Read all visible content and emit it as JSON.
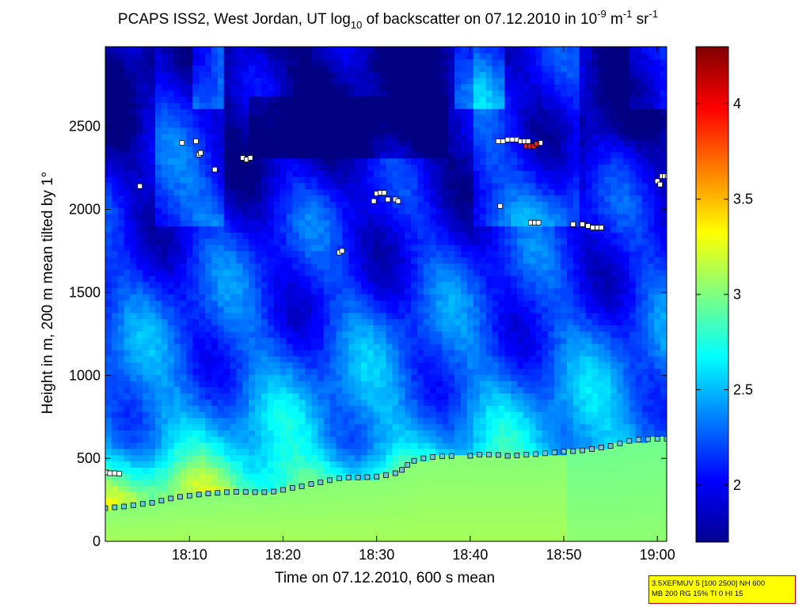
{
  "chart_data": {
    "type": "heatmap",
    "title": {
      "parts": [
        {
          "text": "PCAPS ISS2, West Jordan, UT log",
          "shift": "normal"
        },
        {
          "text": "10",
          "shift": "sub"
        },
        {
          "text": " of backscatter on 07.12.2010 in 10",
          "shift": "normal"
        },
        {
          "text": "-9",
          "shift": "super"
        },
        {
          "text": " m",
          "shift": "normal"
        },
        {
          "text": "-1",
          "shift": "super"
        },
        {
          "text": " sr",
          "shift": "normal"
        },
        {
          "text": "-1",
          "shift": "super"
        }
      ]
    },
    "xlabel": "Time on 07.12.2010, 600 s mean",
    "ylabel": "Height in m, 200 m mean tilted by 1°",
    "x_ticks": [
      {
        "minute": 10,
        "label": "18:10"
      },
      {
        "minute": 20,
        "label": "18:20"
      },
      {
        "minute": 30,
        "label": "18:30"
      },
      {
        "minute": 40,
        "label": "18:40"
      },
      {
        "minute": 50,
        "label": "18:50"
      },
      {
        "minute": 60,
        "label": "19:00"
      }
    ],
    "x_range_minutes_after_1800": [
      1,
      61
    ],
    "y_ticks": [
      {
        "value": 0,
        "label": "0"
      },
      {
        "value": 500,
        "label": "500"
      },
      {
        "value": 1000,
        "label": "1000"
      },
      {
        "value": 1500,
        "label": "1500"
      },
      {
        "value": 2000,
        "label": "2000"
      },
      {
        "value": 2500,
        "label": "2500"
      }
    ],
    "ylim": [
      0,
      2980
    ],
    "colorbar": {
      "colormap": "jet",
      "range": [
        1.7,
        4.3
      ],
      "ticks": [
        {
          "value": 2,
          "label": "2"
        },
        {
          "value": 2.5,
          "label": "2.5"
        },
        {
          "value": 3,
          "label": "3"
        },
        {
          "value": 3.5,
          "label": "3.5"
        },
        {
          "value": 4,
          "label": "4"
        }
      ]
    },
    "background_field_approx": {
      "description_levels": [
        {
          "height_m": 0,
          "value": 3.1
        },
        {
          "height_m": 300,
          "value": 3.0
        },
        {
          "height_m": 600,
          "value": 2.5
        },
        {
          "height_m": 1000,
          "value": 2.3
        },
        {
          "height_m": 1500,
          "value": 2.15
        },
        {
          "height_m": 2000,
          "value": 2.05
        },
        {
          "height_m": 2500,
          "value": 1.8
        },
        {
          "height_m": 2980,
          "value": 1.75
        }
      ]
    },
    "series": [
      {
        "name": "",
        "kind": "marker_cyan",
        "points": [
          [
            1.0,
            200
          ],
          [
            2.0,
            205
          ],
          [
            3.0,
            210
          ],
          [
            4.0,
            218
          ],
          [
            5.0,
            225
          ],
          [
            6.0,
            232
          ],
          [
            7.0,
            245
          ],
          [
            8.0,
            258
          ],
          [
            9.0,
            268
          ],
          [
            10.0,
            275
          ],
          [
            11.0,
            282
          ],
          [
            12.0,
            288
          ],
          [
            13.0,
            292
          ],
          [
            14.0,
            296
          ],
          [
            15.0,
            298
          ],
          [
            16.0,
            297
          ],
          [
            17.0,
            296
          ],
          [
            18.0,
            296
          ],
          [
            19.0,
            300
          ],
          [
            20.0,
            310
          ],
          [
            21.0,
            322
          ],
          [
            22.0,
            332
          ],
          [
            23.0,
            345
          ],
          [
            24.0,
            355
          ],
          [
            25.0,
            368
          ],
          [
            26.0,
            380
          ],
          [
            27.0,
            385
          ],
          [
            28.0,
            385
          ],
          [
            29.0,
            386
          ],
          [
            30.0,
            390
          ],
          [
            31.0,
            398
          ],
          [
            32.0,
            410
          ],
          [
            32.7,
            430
          ],
          [
            33.3,
            460
          ],
          [
            34.0,
            485
          ],
          [
            35.0,
            500
          ],
          [
            36.0,
            508
          ],
          [
            37.0,
            512
          ],
          [
            38.0,
            514
          ],
          [
            40.0,
            515
          ],
          [
            41.0,
            522
          ],
          [
            42.0,
            522
          ],
          [
            43.0,
            520
          ],
          [
            44.0,
            515
          ],
          [
            45.0,
            518
          ],
          [
            46.0,
            522
          ],
          [
            47.0,
            525
          ],
          [
            48.0,
            530
          ],
          [
            49.0,
            535
          ],
          [
            50.0,
            540
          ],
          [
            51.0,
            543
          ],
          [
            52.0,
            548
          ],
          [
            53.0,
            556
          ],
          [
            54.0,
            565
          ],
          [
            55.0,
            575
          ],
          [
            56.0,
            590
          ],
          [
            57.0,
            605
          ],
          [
            58.0,
            612
          ],
          [
            59.0,
            615
          ],
          [
            60.0,
            617
          ],
          [
            61.0,
            618
          ]
        ]
      },
      {
        "name": "",
        "kind": "marker_white",
        "points": [
          [
            1.1,
            415
          ],
          [
            1.5,
            410
          ],
          [
            2.0,
            410
          ],
          [
            2.5,
            408
          ],
          [
            4.7,
            2140
          ],
          [
            9.2,
            2400
          ],
          [
            10.7,
            2410
          ],
          [
            11.0,
            2330
          ],
          [
            11.2,
            2340
          ],
          [
            12.7,
            2240
          ],
          [
            15.7,
            2310
          ],
          [
            16.1,
            2300
          ],
          [
            16.5,
            2310
          ],
          [
            26.0,
            1740
          ],
          [
            26.3,
            1750
          ],
          [
            29.7,
            2050
          ],
          [
            30.0,
            2095
          ],
          [
            30.4,
            2100
          ],
          [
            30.8,
            2100
          ],
          [
            31.2,
            2060
          ],
          [
            32.0,
            2060
          ],
          [
            32.3,
            2050
          ],
          [
            43.0,
            2410
          ],
          [
            43.5,
            2410
          ],
          [
            44.0,
            2420
          ],
          [
            44.5,
            2420
          ],
          [
            45.0,
            2420
          ],
          [
            45.4,
            2410
          ],
          [
            45.8,
            2410
          ],
          [
            46.2,
            2410
          ],
          [
            47.5,
            2400
          ],
          [
            43.2,
            2020
          ],
          [
            46.5,
            1920
          ],
          [
            46.9,
            1920
          ],
          [
            47.3,
            1920
          ],
          [
            51.0,
            1910
          ],
          [
            52.0,
            1910
          ],
          [
            52.6,
            1900
          ],
          [
            53.1,
            1890
          ],
          [
            53.6,
            1890
          ],
          [
            54.0,
            1890
          ],
          [
            60.0,
            2170
          ],
          [
            60.3,
            2150
          ],
          [
            60.5,
            2200
          ],
          [
            60.8,
            2200
          ],
          [
            61.1,
            2200
          ],
          [
            61.4,
            2190
          ]
        ]
      },
      {
        "name": "",
        "kind": "marker_red",
        "points": [
          [
            46.0,
            2380
          ],
          [
            46.4,
            2380
          ],
          [
            46.8,
            2380
          ],
          [
            47.1,
            2395
          ]
        ]
      }
    ]
  },
  "info_box": {
    "line1": "3.5XEFMUV 5 [100 2500] NH 600",
    "line2": "MB 200 RG 15% TI 0 HI 15"
  }
}
